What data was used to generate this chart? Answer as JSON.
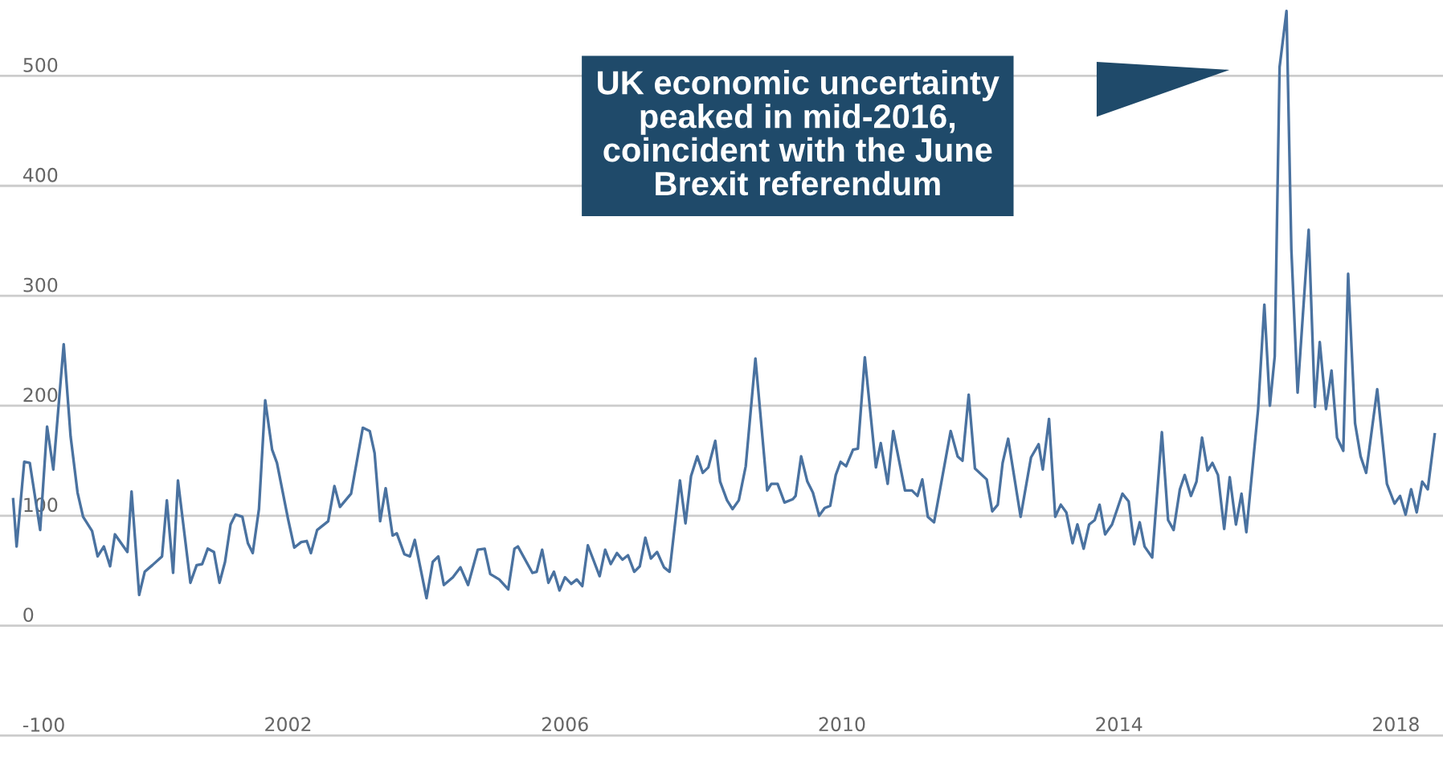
{
  "chart_data": {
    "type": "line",
    "color": "#4a72a0",
    "x": [
      1998.03,
      1998.08,
      1998.19,
      1998.27,
      1998.42,
      1998.52,
      1998.61,
      1998.76,
      1998.86,
      1998.96,
      1999.04,
      1999.17,
      1999.25,
      1999.34,
      1999.43,
      1999.5,
      1999.68,
      1999.74,
      1999.85,
      1999.93,
      2000.04,
      2000.18,
      2000.25,
      2000.34,
      2000.41,
      2000.59,
      2000.68,
      2000.76,
      2000.84,
      2000.93,
      2001.01,
      2001.09,
      2001.17,
      2001.24,
      2001.34,
      2001.42,
      2001.49,
      2001.58,
      2001.67,
      2001.77,
      2001.84,
      2002.0,
      2002.09,
      2002.19,
      2002.27,
      2002.33,
      2002.42,
      2002.58,
      2002.67,
      2002.75,
      2002.91,
      2003.08,
      2003.18,
      2003.25,
      2003.33,
      2003.41,
      2003.51,
      2003.57,
      2003.68,
      2003.76,
      2003.83,
      2004.0,
      2004.09,
      2004.17,
      2004.25,
      2004.38,
      2004.49,
      2004.6,
      2004.74,
      2004.84,
      2004.92,
      2005.05,
      2005.18,
      2005.27,
      2005.32,
      2005.53,
      2005.59,
      2005.67,
      2005.76,
      2005.84,
      2005.92,
      2006.0,
      2006.09,
      2006.17,
      2006.25,
      2006.33,
      2006.5,
      2006.58,
      2006.66,
      2006.75,
      2006.83,
      2006.91,
      2007.0,
      2007.08,
      2007.16,
      2007.24,
      2007.33,
      2007.43,
      2007.51,
      2007.66,
      2007.74,
      2007.82,
      2007.91,
      2007.99,
      2008.07,
      2008.17,
      2008.24,
      2008.34,
      2008.42,
      2008.51,
      2008.61,
      2008.75,
      2008.92,
      2008.98,
      2009.07,
      2009.17,
      2009.29,
      2009.33,
      2009.41,
      2009.5,
      2009.58,
      2009.67,
      2009.75,
      2009.83,
      2009.91,
      2009.98,
      2010.06,
      2010.16,
      2010.23,
      2010.33,
      2010.49,
      2010.56,
      2010.66,
      2010.74,
      2010.91,
      2011.01,
      2011.09,
      2011.16,
      2011.24,
      2011.33,
      2011.57,
      2011.67,
      2011.74,
      2011.83,
      2011.92,
      2012.09,
      2012.17,
      2012.25,
      2012.32,
      2012.4,
      2012.58,
      2012.73,
      2012.84,
      2012.9,
      2012.99,
      2013.08,
      2013.16,
      2013.24,
      2013.33,
      2013.4,
      2013.49,
      2013.57,
      2013.65,
      2013.72,
      2013.8,
      2013.9,
      2014.05,
      2014.14,
      2014.22,
      2014.3,
      2014.37,
      2014.48,
      2014.62,
      2014.71,
      2014.79,
      2014.88,
      2014.95,
      2015.04,
      2015.12,
      2015.2,
      2015.28,
      2015.35,
      2015.43,
      2015.52,
      2015.6,
      2015.69,
      2015.77,
      2015.84,
      2016.01,
      2016.1,
      2016.18,
      2016.25,
      2016.32,
      2016.42,
      2016.49,
      2016.58,
      2016.74,
      2016.83,
      2016.9,
      2016.99,
      2017.07,
      2017.15,
      2017.24,
      2017.31,
      2017.41,
      2017.49,
      2017.57,
      2017.73,
      2017.87,
      2017.98,
      2018.06,
      2018.14,
      2018.22,
      2018.3,
      2018.38,
      2018.46,
      2018.56
    ],
    "values": [
      115,
      72,
      149,
      148,
      87,
      181,
      142,
      256,
      172,
      121,
      99,
      86,
      63,
      72,
      54,
      83,
      67,
      122,
      28,
      49,
      55,
      63,
      114,
      48,
      132,
      39,
      55,
      56,
      70,
      67,
      39,
      58,
      92,
      101,
      99,
      75,
      66,
      106,
      205,
      160,
      148,
      97,
      71,
      76,
      77,
      66,
      87,
      95,
      127,
      108,
      120,
      180,
      177,
      157,
      95,
      125,
      82,
      84,
      65,
      63,
      78,
      25,
      58,
      63,
      37,
      44,
      53,
      37,
      69,
      70,
      47,
      42,
      33,
      70,
      72,
      48,
      49,
      69,
      39,
      49,
      32,
      44,
      38,
      42,
      36,
      73,
      45,
      69,
      56,
      66,
      60,
      64,
      49,
      54,
      80,
      61,
      67,
      53,
      49,
      132,
      93,
      136,
      154,
      139,
      144,
      168,
      131,
      114,
      106,
      114,
      145,
      243,
      123,
      129,
      129,
      112,
      115,
      118,
      154,
      131,
      121,
      100,
      107,
      109,
      137,
      149,
      145,
      160,
      161,
      244,
      144,
      166,
      129,
      177,
      123,
      123,
      118,
      133,
      99,
      94,
      177,
      154,
      150,
      210,
      143,
      133,
      104,
      110,
      148,
      170,
      99,
      153,
      165,
      142,
      188,
      99,
      110,
      103,
      75,
      92,
      70,
      92,
      96,
      110,
      83,
      92,
      120,
      113,
      74,
      94,
      72,
      62,
      176,
      96,
      87,
      124,
      137,
      118,
      131,
      171,
      141,
      148,
      137,
      88,
      135,
      92,
      120,
      85,
      197,
      292,
      200,
      245,
      508,
      559,
      342,
      212,
      360,
      199,
      258,
      197,
      232,
      171,
      159,
      320,
      184,
      154,
      139,
      215,
      129,
      111,
      118,
      101,
      124,
      103,
      131,
      124,
      174
    ],
    "xlim": [
      1997.84,
      2018.68
    ],
    "ylim": [
      -134,
      569
    ],
    "xticks": [
      2002,
      2006,
      2010,
      2014,
      2018
    ],
    "yticks": [
      -100,
      0,
      100,
      200,
      300,
      400,
      500
    ],
    "grid": "y",
    "marker": "none",
    "line_style": "solid",
    "annotations": [
      "UK economic uncertainty\npeaked in mid-2016,\ncoincident with the June\nBrexit referendum"
    ]
  }
}
